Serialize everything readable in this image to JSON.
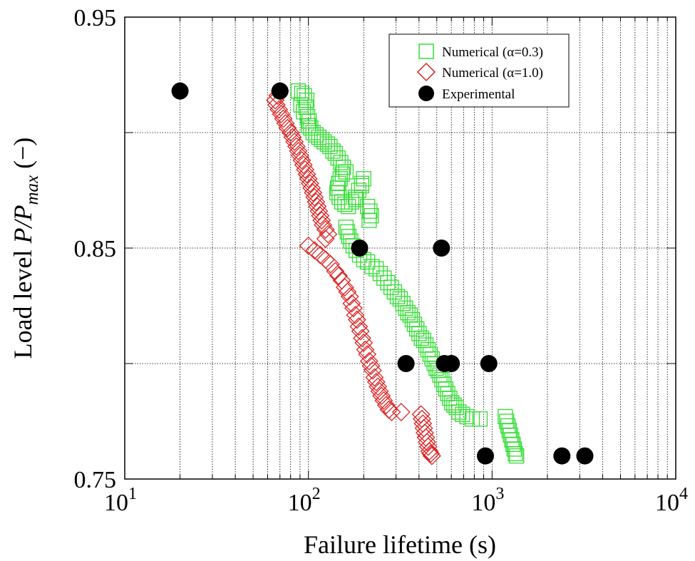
{
  "chart_data": {
    "type": "scatter",
    "xlabel": "Failure lifetime (s)",
    "ylabel": {
      "prefix": "Load level ",
      "main": "P/P",
      "sub": "max",
      "suffix": " (−)"
    },
    "xscale": "log",
    "xlim": [
      10,
      10000
    ],
    "ylim": [
      0.75,
      0.95
    ],
    "x_ticks": [
      {
        "value": 10,
        "base": "10",
        "exp": "1"
      },
      {
        "value": 100,
        "base": "10",
        "exp": "2"
      },
      {
        "value": 1000,
        "base": "10",
        "exp": "3"
      },
      {
        "value": 10000,
        "base": "10",
        "exp": "4"
      }
    ],
    "y_ticks": [
      {
        "value": 0.75,
        "label": "0.75"
      },
      {
        "value": 0.8,
        "label": ""
      },
      {
        "value": 0.85,
        "label": "0.85"
      },
      {
        "value": 0.9,
        "label": ""
      },
      {
        "value": 0.95,
        "label": "0.95"
      }
    ],
    "grid": true,
    "legend_position": "top-right",
    "series": [
      {
        "name": "Numerical (α=0.3)",
        "marker": "square",
        "color": "#33dd33",
        "points": [
          [
            88,
            0.918
          ],
          [
            92,
            0.917
          ],
          [
            95,
            0.916
          ],
          [
            98,
            0.914
          ],
          [
            91,
            0.912
          ],
          [
            97,
            0.911
          ],
          [
            94,
            0.909
          ],
          [
            99,
            0.907
          ],
          [
            101,
            0.905
          ],
          [
            100,
            0.903
          ],
          [
            103,
            0.902
          ],
          [
            106,
            0.9
          ],
          [
            110,
            0.899
          ],
          [
            114,
            0.898
          ],
          [
            118,
            0.897
          ],
          [
            122,
            0.896
          ],
          [
            127,
            0.895
          ],
          [
            131,
            0.894
          ],
          [
            136,
            0.892
          ],
          [
            140,
            0.891
          ],
          [
            145,
            0.889
          ],
          [
            150,
            0.887
          ],
          [
            155,
            0.885
          ],
          [
            160,
            0.883
          ],
          [
            153,
            0.882
          ],
          [
            149,
            0.88
          ],
          [
            146,
            0.878
          ],
          [
            144,
            0.876
          ],
          [
            143,
            0.874
          ],
          [
            147,
            0.872
          ],
          [
            152,
            0.87
          ],
          [
            158,
            0.869
          ],
          [
            165,
            0.868
          ],
          [
            172,
            0.87
          ],
          [
            180,
            0.872
          ],
          [
            188,
            0.875
          ],
          [
            195,
            0.878
          ],
          [
            200,
            0.88
          ],
          [
            195,
            0.877
          ],
          [
            182,
            0.871
          ],
          [
            210,
            0.868
          ],
          [
            216,
            0.866
          ],
          [
            220,
            0.864
          ],
          [
            214,
            0.862
          ],
          [
            160,
            0.859
          ],
          [
            163,
            0.857
          ],
          [
            166,
            0.855
          ],
          [
            170,
            0.853
          ],
          [
            175,
            0.851
          ],
          [
            182,
            0.849
          ],
          [
            190,
            0.847
          ],
          [
            200,
            0.845
          ],
          [
            210,
            0.844
          ],
          [
            222,
            0.842
          ],
          [
            234,
            0.841
          ],
          [
            246,
            0.839
          ],
          [
            258,
            0.837
          ],
          [
            270,
            0.835
          ],
          [
            282,
            0.833
          ],
          [
            294,
            0.831
          ],
          [
            305,
            0.829
          ],
          [
            316,
            0.828
          ],
          [
            327,
            0.826
          ],
          [
            338,
            0.824
          ],
          [
            348,
            0.822
          ],
          [
            358,
            0.821
          ],
          [
            368,
            0.819
          ],
          [
            378,
            0.817
          ],
          [
            389,
            0.815
          ],
          [
            400,
            0.813
          ],
          [
            412,
            0.811
          ],
          [
            424,
            0.81
          ],
          [
            436,
            0.808
          ],
          [
            448,
            0.806
          ],
          [
            460,
            0.804
          ],
          [
            472,
            0.802
          ],
          [
            484,
            0.8
          ],
          [
            496,
            0.798
          ],
          [
            508,
            0.797
          ],
          [
            520,
            0.795
          ],
          [
            533,
            0.793
          ],
          [
            546,
            0.791
          ],
          [
            559,
            0.789
          ],
          [
            573,
            0.787
          ],
          [
            588,
            0.785
          ],
          [
            603,
            0.783
          ],
          [
            620,
            0.782
          ],
          [
            638,
            0.781
          ],
          [
            660,
            0.779
          ],
          [
            690,
            0.778
          ],
          [
            730,
            0.777
          ],
          [
            780,
            0.776
          ],
          [
            860,
            0.776
          ],
          [
            1180,
            0.777
          ],
          [
            1200,
            0.775
          ],
          [
            1220,
            0.773
          ],
          [
            1240,
            0.771
          ],
          [
            1260,
            0.769
          ],
          [
            1280,
            0.767
          ],
          [
            1300,
            0.765
          ],
          [
            1320,
            0.763
          ],
          [
            1340,
            0.761
          ],
          [
            1360,
            0.76
          ]
        ]
      },
      {
        "name": "Numerical (α=1.0)",
        "marker": "diamond",
        "color": "#dd2222",
        "points": [
          [
            70,
            0.918
          ],
          [
            68,
            0.916
          ],
          [
            66,
            0.914
          ],
          [
            67,
            0.912
          ],
          [
            69,
            0.91
          ],
          [
            71,
            0.908
          ],
          [
            73,
            0.906
          ],
          [
            75,
            0.904
          ],
          [
            77,
            0.902
          ],
          [
            80,
            0.9
          ],
          [
            82,
            0.898
          ],
          [
            84,
            0.896
          ],
          [
            86,
            0.894
          ],
          [
            88,
            0.892
          ],
          [
            90,
            0.89
          ],
          [
            92,
            0.888
          ],
          [
            94,
            0.886
          ],
          [
            96,
            0.884
          ],
          [
            98,
            0.882
          ],
          [
            100,
            0.88
          ],
          [
            102,
            0.878
          ],
          [
            104,
            0.876
          ],
          [
            106,
            0.874
          ],
          [
            108,
            0.872
          ],
          [
            110,
            0.87
          ],
          [
            112,
            0.868
          ],
          [
            114,
            0.866
          ],
          [
            116,
            0.864
          ],
          [
            118,
            0.862
          ],
          [
            120,
            0.86
          ],
          [
            124,
            0.858
          ],
          [
            128,
            0.856
          ],
          [
            124,
            0.854
          ],
          [
            100,
            0.851
          ],
          [
            108,
            0.849
          ],
          [
            116,
            0.847
          ],
          [
            124,
            0.845
          ],
          [
            132,
            0.843
          ],
          [
            140,
            0.84
          ],
          [
            146,
            0.838
          ],
          [
            152,
            0.836
          ],
          [
            158,
            0.833
          ],
          [
            163,
            0.831
          ],
          [
            168,
            0.829
          ],
          [
            172,
            0.826
          ],
          [
            176,
            0.824
          ],
          [
            180,
            0.821
          ],
          [
            184,
            0.819
          ],
          [
            188,
            0.816
          ],
          [
            192,
            0.814
          ],
          [
            196,
            0.811
          ],
          [
            200,
            0.809
          ],
          [
            204,
            0.806
          ],
          [
            209,
            0.804
          ],
          [
            214,
            0.801
          ],
          [
            219,
            0.799
          ],
          [
            224,
            0.797
          ],
          [
            229,
            0.794
          ],
          [
            234,
            0.792
          ],
          [
            239,
            0.79
          ],
          [
            244,
            0.788
          ],
          [
            250,
            0.786
          ],
          [
            257,
            0.784
          ],
          [
            265,
            0.782
          ],
          [
            274,
            0.78
          ],
          [
            284,
            0.779
          ],
          [
            320,
            0.779
          ],
          [
            410,
            0.778
          ],
          [
            415,
            0.776
          ],
          [
            420,
            0.774
          ],
          [
            425,
            0.772
          ],
          [
            430,
            0.77
          ],
          [
            436,
            0.768
          ],
          [
            442,
            0.766
          ],
          [
            449,
            0.764
          ],
          [
            456,
            0.762
          ],
          [
            463,
            0.761
          ],
          [
            470,
            0.76
          ]
        ]
      },
      {
        "name": "Experimental",
        "marker": "circle",
        "color": "#000000",
        "points": [
          [
            20,
            0.918
          ],
          [
            70,
            0.918
          ],
          [
            190,
            0.85
          ],
          [
            530,
            0.85
          ],
          [
            340,
            0.8
          ],
          [
            550,
            0.8
          ],
          [
            600,
            0.8
          ],
          [
            960,
            0.8
          ],
          [
            920,
            0.76
          ],
          [
            2400,
            0.76
          ],
          [
            3200,
            0.76
          ]
        ]
      }
    ]
  }
}
